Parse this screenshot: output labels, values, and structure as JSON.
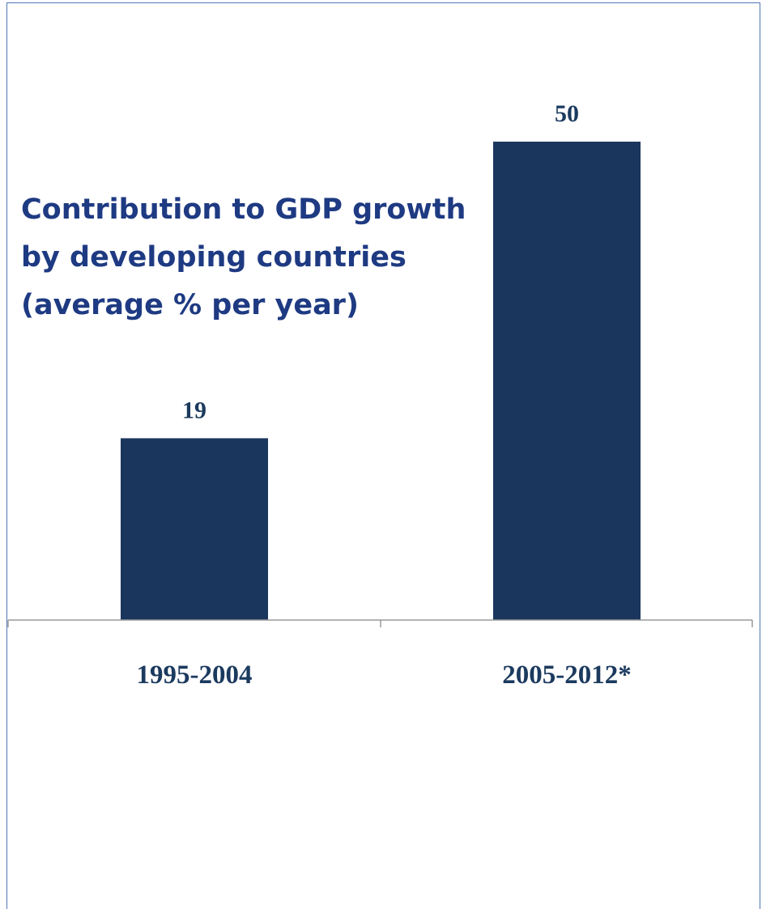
{
  "chart_data": {
    "type": "bar",
    "title": " Contribution to GDP growth\nby developing countries\n(average % per year)",
    "categories": [
      "1995-2004",
      "2005-2012*"
    ],
    "values": [
      19,
      50
    ],
    "xlabel": "",
    "ylabel": "",
    "ylim": [
      0,
      50
    ],
    "grid": false,
    "legend": "none",
    "colors": {
      "bar": "#1b365d",
      "title": "#1e3a82",
      "axis": "#9a9a9a",
      "frame": "#4f77b4"
    }
  }
}
